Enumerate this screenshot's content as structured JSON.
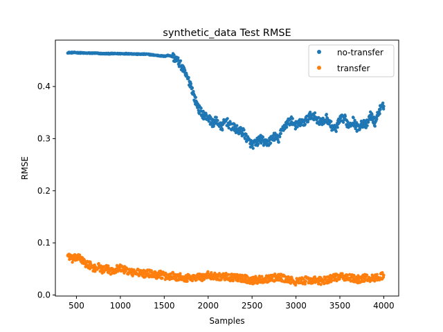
{
  "chart_data": {
    "type": "scatter",
    "title": "synthetic_data Test RMSE",
    "xlabel": "Samples",
    "ylabel": "RMSE",
    "xlim": [
      260,
      4170
    ],
    "ylim": [
      -0.002,
      0.489
    ],
    "xticks": [
      500,
      1000,
      1500,
      2000,
      2500,
      3000,
      3500,
      4000
    ],
    "xtick_labels": [
      "500",
      "1000",
      "1500",
      "2000",
      "2500",
      "3000",
      "3500",
      "4000"
    ],
    "yticks": [
      0.0,
      0.1,
      0.2,
      0.3,
      0.4
    ],
    "ytick_labels": [
      "0.0",
      "0.1",
      "0.2",
      "0.3",
      "0.4"
    ],
    "grid": false,
    "legend_position": "top-right",
    "series": [
      {
        "name": "no-transfer",
        "color": "#1f77b4",
        "x": [
          400,
          500,
          600,
          700,
          800,
          900,
          1000,
          1100,
          1200,
          1300,
          1400,
          1500,
          1550,
          1600,
          1650,
          1700,
          1750,
          1800,
          1850,
          1900,
          1950,
          2000,
          2050,
          2100,
          2150,
          2200,
          2250,
          2300,
          2350,
          2400,
          2450,
          2500,
          2550,
          2600,
          2650,
          2700,
          2750,
          2800,
          2850,
          2900,
          2950,
          3000,
          3050,
          3100,
          3150,
          3200,
          3250,
          3300,
          3350,
          3400,
          3450,
          3500,
          3550,
          3600,
          3650,
          3700,
          3750,
          3800,
          3850,
          3900,
          3950,
          4000
        ],
        "y": [
          0.465,
          0.465,
          0.464,
          0.464,
          0.463,
          0.463,
          0.463,
          0.463,
          0.462,
          0.462,
          0.46,
          0.458,
          0.46,
          0.457,
          0.45,
          0.438,
          0.42,
          0.405,
          0.375,
          0.355,
          0.345,
          0.34,
          0.33,
          0.335,
          0.32,
          0.335,
          0.325,
          0.32,
          0.315,
          0.312,
          0.298,
          0.288,
          0.292,
          0.3,
          0.29,
          0.295,
          0.305,
          0.298,
          0.32,
          0.33,
          0.335,
          0.325,
          0.33,
          0.332,
          0.342,
          0.345,
          0.335,
          0.33,
          0.34,
          0.325,
          0.318,
          0.335,
          0.34,
          0.325,
          0.335,
          0.32,
          0.33,
          0.325,
          0.345,
          0.33,
          0.355,
          0.362
        ]
      },
      {
        "name": "transfer",
        "color": "#ff7f0e",
        "x": [
          400,
          450,
          500,
          550,
          600,
          650,
          700,
          750,
          800,
          850,
          900,
          950,
          1000,
          1050,
          1100,
          1150,
          1200,
          1250,
          1300,
          1350,
          1400,
          1450,
          1500,
          1550,
          1600,
          1650,
          1700,
          1750,
          1800,
          1850,
          1900,
          1950,
          2000,
          2100,
          2200,
          2300,
          2400,
          2500,
          2600,
          2700,
          2800,
          2900,
          3000,
          3100,
          3200,
          3300,
          3400,
          3500,
          3600,
          3700,
          3800,
          3900,
          4000
        ],
        "y": [
          0.078,
          0.068,
          0.072,
          0.07,
          0.06,
          0.058,
          0.05,
          0.055,
          0.048,
          0.05,
          0.046,
          0.05,
          0.052,
          0.048,
          0.045,
          0.042,
          0.044,
          0.04,
          0.042,
          0.041,
          0.038,
          0.04,
          0.036,
          0.035,
          0.038,
          0.034,
          0.036,
          0.032,
          0.034,
          0.033,
          0.035,
          0.034,
          0.038,
          0.036,
          0.035,
          0.033,
          0.032,
          0.028,
          0.03,
          0.032,
          0.034,
          0.03,
          0.025,
          0.028,
          0.028,
          0.027,
          0.032,
          0.035,
          0.033,
          0.03,
          0.033,
          0.032,
          0.038
        ]
      }
    ]
  }
}
